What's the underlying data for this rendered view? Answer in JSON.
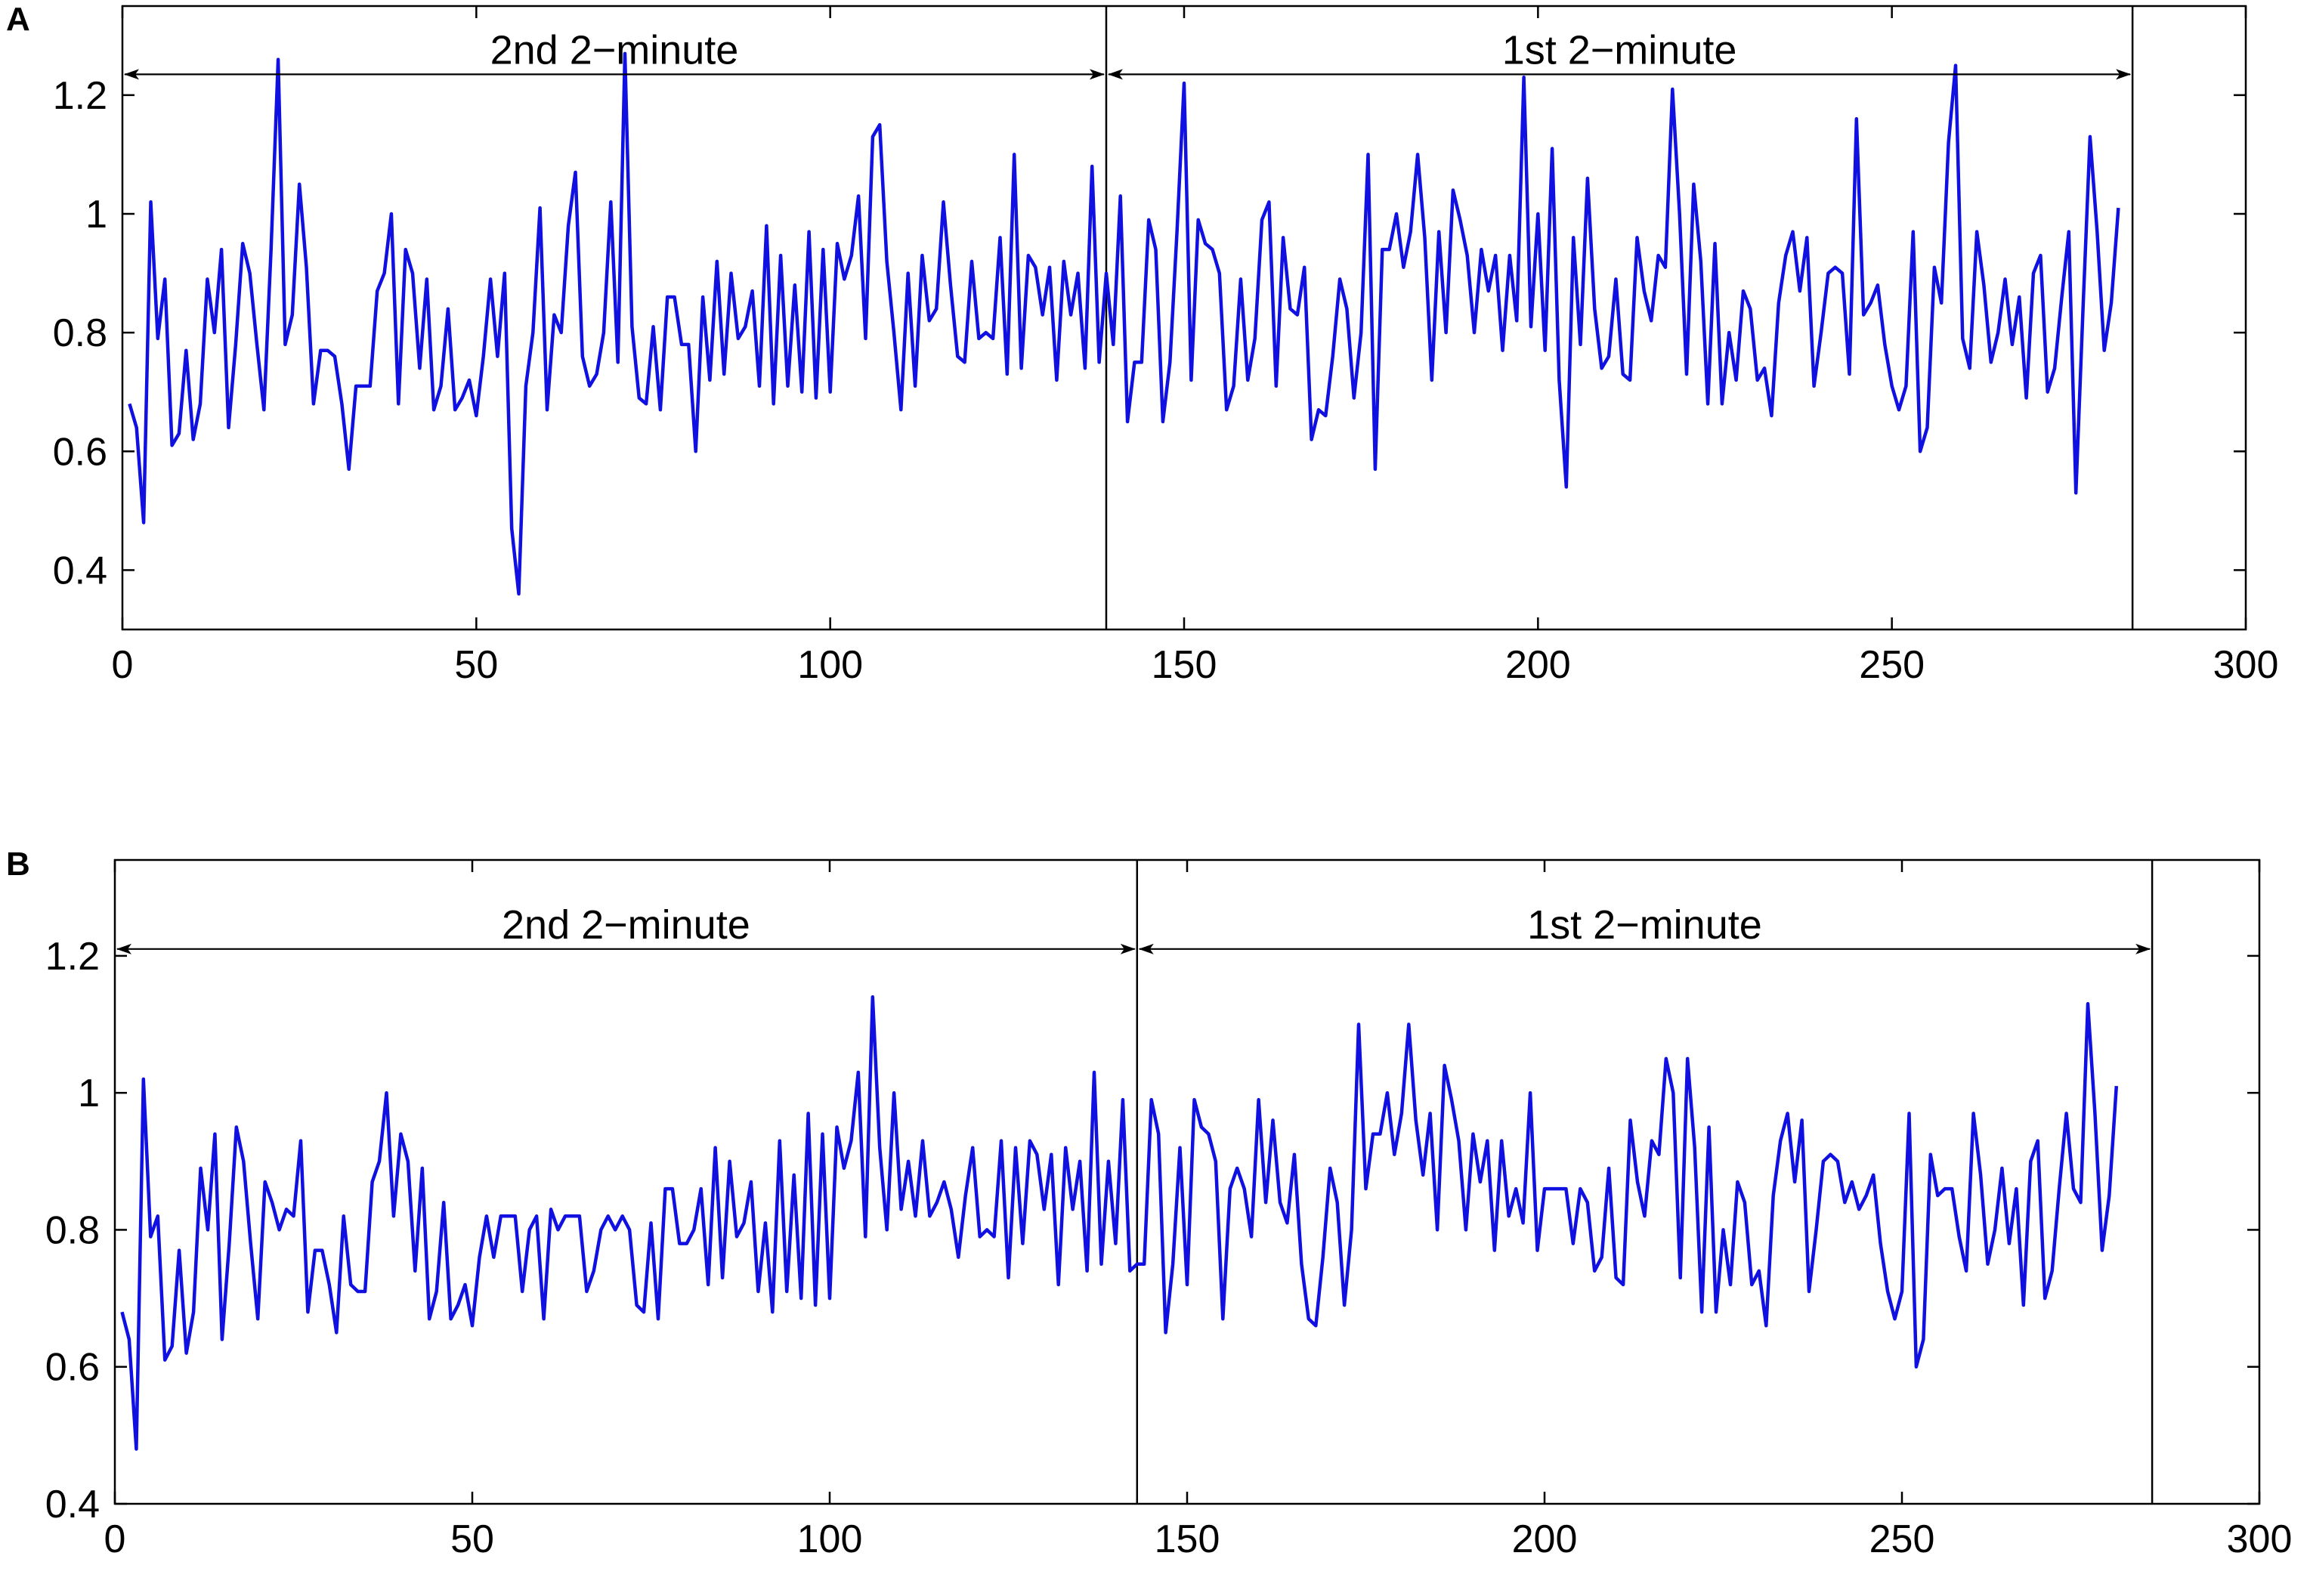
{
  "colors": {
    "series": "#1010e0",
    "axis": "#000000",
    "background": "#ffffff"
  },
  "chart_data": [
    {
      "panel_label": "A",
      "type": "line",
      "xlim": [
        0,
        300
      ],
      "ylim": [
        0.3,
        1.35
      ],
      "xticks": [
        0,
        50,
        100,
        150,
        200,
        250,
        300
      ],
      "yticks": [
        0.4,
        0.6,
        0.8,
        1,
        1.2
      ],
      "xtick_labels": [
        "0",
        "50",
        "100",
        "150",
        "200",
        "250",
        "300"
      ],
      "ytick_labels": [
        "0.4",
        "0.6",
        "0.8",
        "1",
        "1.2"
      ],
      "grid": false,
      "segment_boundaries": [
        139,
        284
      ],
      "annotations": [
        {
          "text": "2nd 2−minute",
          "x_start": 0,
          "x_end": 139,
          "y": 1.235
        },
        {
          "text": "1st 2−minute",
          "x_start": 139,
          "x_end": 284,
          "y": 1.235
        }
      ],
      "series": [
        {
          "values": [
            0.68,
            0.64,
            0.48,
            1.02,
            0.79,
            0.89,
            0.61,
            0.63,
            0.77,
            0.62,
            0.68,
            0.89,
            0.8,
            0.94,
            0.64,
            0.78,
            0.95,
            0.9,
            0.78,
            0.67,
            0.94,
            1.26,
            0.78,
            0.83,
            1.05,
            0.91,
            0.68,
            0.77,
            0.77,
            0.76,
            0.68,
            0.57,
            0.71,
            0.71,
            0.71,
            0.87,
            0.9,
            1.0,
            0.68,
            0.94,
            0.9,
            0.74,
            0.89,
            0.67,
            0.71,
            0.84,
            0.67,
            0.69,
            0.72,
            0.66,
            0.76,
            0.89,
            0.76,
            0.9,
            0.47,
            0.36,
            0.71,
            0.8,
            1.01,
            0.67,
            0.83,
            0.8,
            0.98,
            1.07,
            0.76,
            0.71,
            0.73,
            0.8,
            1.02,
            0.75,
            1.27,
            0.81,
            0.69,
            0.68,
            0.81,
            0.67,
            0.86,
            0.86,
            0.78,
            0.78,
            0.6,
            0.86,
            0.72,
            0.92,
            0.73,
            0.9,
            0.79,
            0.81,
            0.87,
            0.71,
            0.98,
            0.68,
            0.93,
            0.71,
            0.88,
            0.7,
            0.97,
            0.69,
            0.94,
            0.7,
            0.95,
            0.89,
            0.93,
            1.03,
            0.79,
            1.13,
            1.15,
            0.92,
            0.8,
            0.67,
            0.9,
            0.71,
            0.93,
            0.82,
            0.84,
            1.02,
            0.88,
            0.76,
            0.75,
            0.92,
            0.79,
            0.8,
            0.79,
            0.96,
            0.73,
            1.1,
            0.74,
            0.93,
            0.91,
            0.83,
            0.91,
            0.72,
            0.92,
            0.83,
            0.9,
            0.74,
            1.08,
            0.75,
            0.9,
            0.78,
            1.03,
            0.65,
            0.75,
            0.75,
            0.99,
            0.94,
            0.65,
            0.75,
            0.97,
            1.22,
            0.72,
            0.99,
            0.95,
            0.94,
            0.9,
            0.67,
            0.71,
            0.89,
            0.72,
            0.79,
            0.99,
            1.02,
            0.71,
            0.96,
            0.84,
            0.83,
            0.91,
            0.62,
            0.67,
            0.66,
            0.76,
            0.89,
            0.84,
            0.69,
            0.8,
            1.1,
            0.57,
            0.94,
            0.94,
            1.0,
            0.91,
            0.97,
            1.1,
            0.96,
            0.72,
            0.97,
            0.8,
            1.04,
            0.99,
            0.93,
            0.8,
            0.94,
            0.87,
            0.93,
            0.77,
            0.93,
            0.82,
            1.23,
            0.81,
            1.0,
            0.77,
            1.11,
            0.72,
            0.54,
            0.96,
            0.78,
            1.06,
            0.84,
            0.74,
            0.76,
            0.89,
            0.73,
            0.72,
            0.96,
            0.87,
            0.82,
            0.93,
            0.91,
            1.21,
            1.0,
            0.73,
            1.05,
            0.92,
            0.68,
            0.95,
            0.68,
            0.8,
            0.72,
            0.87,
            0.84,
            0.72,
            0.74,
            0.66,
            0.85,
            0.93,
            0.97,
            0.87,
            0.96,
            0.71,
            0.8,
            0.9,
            0.91,
            0.9,
            0.73,
            1.16,
            0.83,
            0.85,
            0.88,
            0.78,
            0.71,
            0.67,
            0.71,
            0.97,
            0.6,
            0.64,
            0.91,
            0.85,
            1.12,
            1.25,
            0.79,
            0.74,
            0.97,
            0.88,
            0.75,
            0.8,
            0.89,
            0.78,
            0.86,
            0.69,
            0.9,
            0.93,
            0.7,
            0.74,
            0.86,
            0.97,
            0.53,
            0.84,
            1.13,
            0.97,
            0.77,
            0.85,
            1.01
          ]
        }
      ]
    },
    {
      "panel_label": "B",
      "type": "line",
      "xlim": [
        0,
        300
      ],
      "ylim": [
        0.4,
        1.34
      ],
      "xticks": [
        0,
        50,
        100,
        150,
        200,
        250,
        300
      ],
      "yticks": [
        0.4,
        0.6,
        0.8,
        1,
        1.2
      ],
      "xtick_labels": [
        "0",
        "50",
        "100",
        "150",
        "200",
        "250",
        "300"
      ],
      "ytick_labels": [
        "0.4",
        "0.6",
        "0.8",
        "1",
        "1.2"
      ],
      "grid": false,
      "segment_boundaries": [
        143,
        285
      ],
      "annotations": [
        {
          "text": "2nd 2−minute",
          "x_start": 0,
          "x_end": 143,
          "y": 1.21
        },
        {
          "text": "1st 2−minute",
          "x_start": 143,
          "x_end": 285,
          "y": 1.21
        }
      ],
      "series": [
        {
          "values": [
            0.68,
            0.64,
            0.48,
            1.02,
            0.79,
            0.82,
            0.61,
            0.63,
            0.77,
            0.62,
            0.68,
            0.89,
            0.8,
            0.94,
            0.64,
            0.78,
            0.95,
            0.9,
            0.78,
            0.67,
            0.87,
            0.84,
            0.8,
            0.83,
            0.82,
            0.93,
            0.68,
            0.77,
            0.77,
            0.72,
            0.65,
            0.82,
            0.72,
            0.71,
            0.71,
            0.87,
            0.9,
            1.0,
            0.82,
            0.94,
            0.9,
            0.74,
            0.89,
            0.67,
            0.71,
            0.84,
            0.67,
            0.69,
            0.72,
            0.66,
            0.76,
            0.82,
            0.76,
            0.82,
            0.82,
            0.82,
            0.71,
            0.8,
            0.82,
            0.67,
            0.83,
            0.8,
            0.82,
            0.82,
            0.82,
            0.71,
            0.74,
            0.8,
            0.82,
            0.8,
            0.82,
            0.8,
            0.69,
            0.68,
            0.81,
            0.67,
            0.86,
            0.86,
            0.78,
            0.78,
            0.8,
            0.86,
            0.72,
            0.92,
            0.73,
            0.9,
            0.79,
            0.81,
            0.87,
            0.71,
            0.81,
            0.68,
            0.93,
            0.71,
            0.88,
            0.7,
            0.97,
            0.69,
            0.94,
            0.7,
            0.95,
            0.89,
            0.93,
            1.03,
            0.79,
            1.14,
            0.92,
            0.8,
            1.0,
            0.83,
            0.9,
            0.82,
            0.93,
            0.82,
            0.84,
            0.87,
            0.83,
            0.76,
            0.85,
            0.92,
            0.79,
            0.8,
            0.79,
            0.93,
            0.73,
            0.92,
            0.78,
            0.93,
            0.91,
            0.83,
            0.91,
            0.72,
            0.92,
            0.83,
            0.9,
            0.74,
            1.03,
            0.75,
            0.9,
            0.78,
            0.99,
            0.74,
            0.75,
            0.75,
            0.99,
            0.94,
            0.65,
            0.75,
            0.92,
            0.72,
            0.99,
            0.95,
            0.94,
            0.9,
            0.67,
            0.86,
            0.89,
            0.86,
            0.79,
            0.99,
            0.84,
            0.96,
            0.84,
            0.81,
            0.91,
            0.75,
            0.67,
            0.66,
            0.76,
            0.89,
            0.84,
            0.69,
            0.8,
            1.1,
            0.86,
            0.94,
            0.94,
            1.0,
            0.91,
            0.97,
            1.1,
            0.96,
            0.88,
            0.97,
            0.8,
            1.04,
            0.99,
            0.93,
            0.8,
            0.94,
            0.87,
            0.93,
            0.77,
            0.93,
            0.82,
            0.86,
            0.81,
            1.0,
            0.77,
            0.86,
            0.86,
            0.86,
            0.86,
            0.78,
            0.86,
            0.84,
            0.74,
            0.76,
            0.89,
            0.73,
            0.72,
            0.96,
            0.87,
            0.82,
            0.93,
            0.91,
            1.05,
            1.0,
            0.73,
            1.05,
            0.92,
            0.68,
            0.95,
            0.68,
            0.8,
            0.72,
            0.87,
            0.84,
            0.72,
            0.74,
            0.66,
            0.85,
            0.93,
            0.97,
            0.87,
            0.96,
            0.71,
            0.8,
            0.9,
            0.91,
            0.9,
            0.84,
            0.87,
            0.83,
            0.85,
            0.88,
            0.78,
            0.71,
            0.67,
            0.71,
            0.97,
            0.6,
            0.64,
            0.91,
            0.85,
            0.86,
            0.86,
            0.79,
            0.74,
            0.97,
            0.88,
            0.75,
            0.8,
            0.89,
            0.78,
            0.86,
            0.69,
            0.9,
            0.93,
            0.7,
            0.74,
            0.86,
            0.97,
            0.86,
            0.84,
            1.13,
            0.97,
            0.77,
            0.85,
            1.01
          ]
        }
      ]
    }
  ]
}
